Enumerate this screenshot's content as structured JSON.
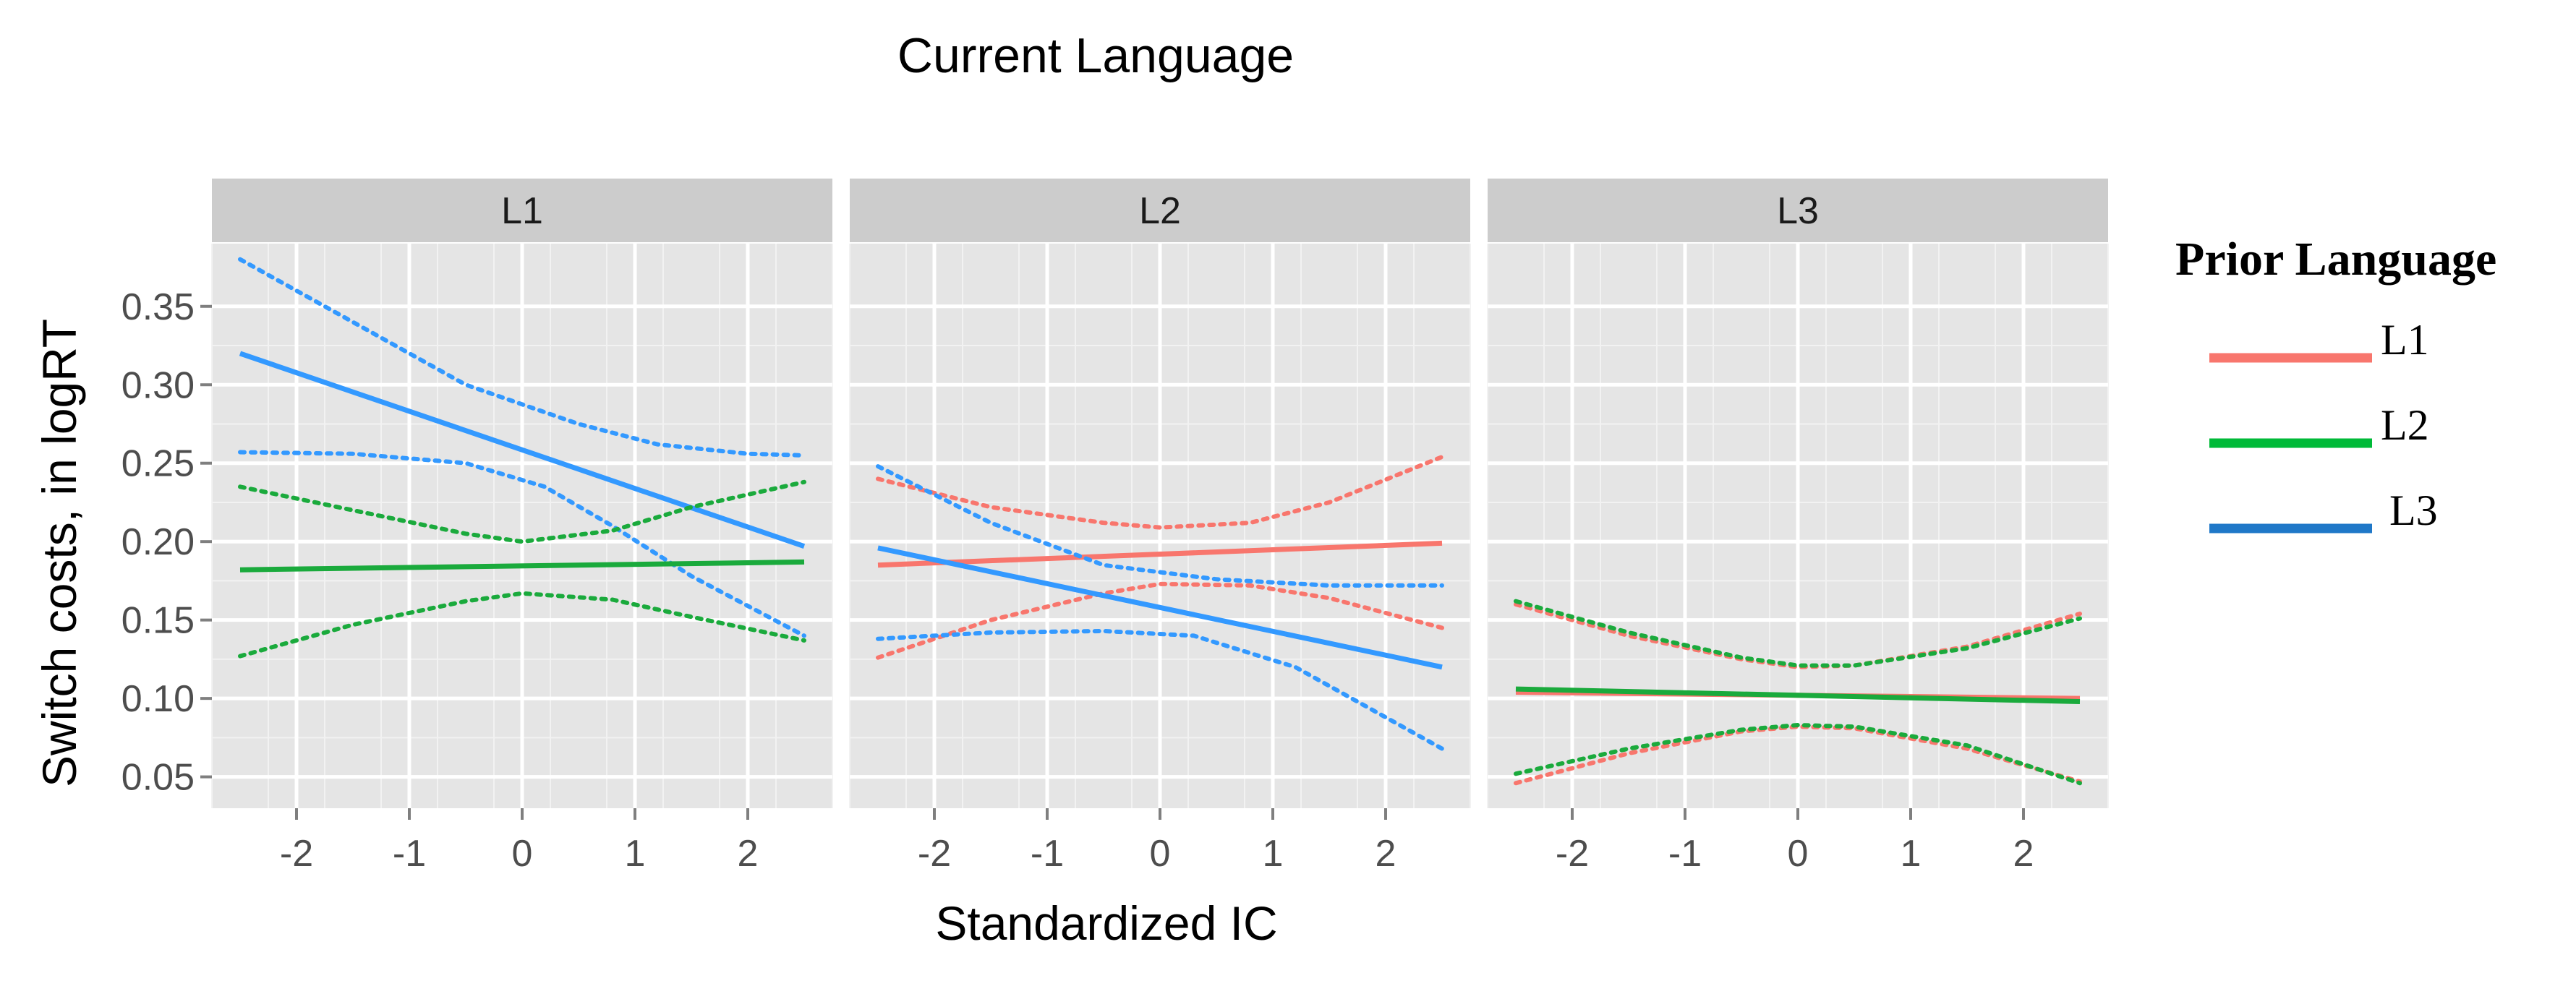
{
  "chart_data": {
    "type": "line",
    "title": "Current Language",
    "xlabel": "Standardized IC",
    "ylabel": "Switch costs, in logRT",
    "xlim": [
      -2.75,
      2.75
    ],
    "ylim": [
      0.03,
      0.39
    ],
    "x_ticks": [
      -2,
      -1,
      0,
      1,
      2
    ],
    "y_ticks": [
      0.05,
      0.1,
      0.15,
      0.2,
      0.25,
      0.3,
      0.35
    ],
    "y_tick_labels": [
      "0.05",
      "0.10",
      "0.15",
      "0.20",
      "0.25",
      "0.30",
      "0.35"
    ],
    "grid": true,
    "panel_background": "#e5e5e5",
    "strip_background": "#cccccc",
    "legend": {
      "title": "Prior Language",
      "position": "right",
      "entries": [
        {
          "label": "L1",
          "color": "#f8766d"
        },
        {
          "label": "L2",
          "color": "#00ba38"
        },
        {
          "label": "L3",
          "color": "#1f78c8"
        }
      ]
    },
    "panels": [
      {
        "label": "L1",
        "series": [
          {
            "color": "#3399ff",
            "fit": [
              [
                -2.5,
                0.32
              ],
              [
                2.5,
                0.197
              ]
            ],
            "upper": [
              [
                -2.5,
                0.38
              ],
              [
                -1.5,
                0.34
              ],
              [
                -0.5,
                0.3
              ],
              [
                0.5,
                0.275
              ],
              [
                1.2,
                0.262
              ],
              [
                2.0,
                0.256
              ],
              [
                2.5,
                0.255
              ]
            ],
            "lower": [
              [
                -2.5,
                0.257
              ],
              [
                -1.5,
                0.256
              ],
              [
                -0.5,
                0.25
              ],
              [
                0.2,
                0.235
              ],
              [
                0.8,
                0.21
              ],
              [
                1.5,
                0.178
              ],
              [
                2.5,
                0.14
              ]
            ]
          },
          {
            "color": "#1aaa3c",
            "fit": [
              [
                -2.5,
                0.182
              ],
              [
                2.5,
                0.187
              ]
            ],
            "upper": [
              [
                -2.5,
                0.235
              ],
              [
                -1.5,
                0.22
              ],
              [
                -0.5,
                0.205
              ],
              [
                0.0,
                0.2
              ],
              [
                0.8,
                0.207
              ],
              [
                1.5,
                0.222
              ],
              [
                2.5,
                0.238
              ]
            ],
            "lower": [
              [
                -2.5,
                0.127
              ],
              [
                -1.5,
                0.147
              ],
              [
                -0.5,
                0.162
              ],
              [
                0.0,
                0.167
              ],
              [
                0.8,
                0.163
              ],
              [
                1.5,
                0.152
              ],
              [
                2.5,
                0.137
              ]
            ]
          }
        ]
      },
      {
        "label": "L2",
        "series": [
          {
            "color": "#f8766d",
            "fit": [
              [
                -2.5,
                0.185
              ],
              [
                2.5,
                0.199
              ]
            ],
            "upper": [
              [
                -2.5,
                0.24
              ],
              [
                -1.5,
                0.222
              ],
              [
                -0.5,
                0.212
              ],
              [
                0.0,
                0.209
              ],
              [
                0.8,
                0.212
              ],
              [
                1.5,
                0.225
              ],
              [
                2.5,
                0.254
              ]
            ],
            "lower": [
              [
                -2.5,
                0.126
              ],
              [
                -1.5,
                0.15
              ],
              [
                -0.5,
                0.167
              ],
              [
                0.0,
                0.173
              ],
              [
                0.8,
                0.172
              ],
              [
                1.5,
                0.164
              ],
              [
                2.5,
                0.145
              ]
            ]
          },
          {
            "color": "#3399ff",
            "fit": [
              [
                -2.5,
                0.196
              ],
              [
                2.5,
                0.12
              ]
            ],
            "upper": [
              [
                -2.5,
                0.248
              ],
              [
                -1.5,
                0.212
              ],
              [
                -0.5,
                0.185
              ],
              [
                0.5,
                0.176
              ],
              [
                1.5,
                0.172
              ],
              [
                2.5,
                0.172
              ]
            ],
            "lower": [
              [
                -2.5,
                0.138
              ],
              [
                -1.5,
                0.142
              ],
              [
                -0.5,
                0.143
              ],
              [
                0.3,
                0.14
              ],
              [
                1.2,
                0.12
              ],
              [
                2.5,
                0.068
              ]
            ]
          }
        ]
      },
      {
        "label": "L3",
        "series": [
          {
            "color": "#f8766d",
            "fit": [
              [
                -2.5,
                0.104
              ],
              [
                2.5,
                0.1
              ]
            ],
            "upper": [
              [
                -2.5,
                0.16
              ],
              [
                -1.5,
                0.14
              ],
              [
                -0.5,
                0.125
              ],
              [
                0.0,
                0.12
              ],
              [
                0.5,
                0.121
              ],
              [
                1.5,
                0.133
              ],
              [
                2.5,
                0.154
              ]
            ],
            "lower": [
              [
                -2.5,
                0.046
              ],
              [
                -1.5,
                0.065
              ],
              [
                -0.5,
                0.079
              ],
              [
                0.0,
                0.082
              ],
              [
                0.5,
                0.081
              ],
              [
                1.5,
                0.068
              ],
              [
                2.5,
                0.047
              ]
            ]
          },
          {
            "color": "#1aaa3c",
            "fit": [
              [
                -2.5,
                0.106
              ],
              [
                2.5,
                0.098
              ]
            ],
            "upper": [
              [
                -2.5,
                0.162
              ],
              [
                -1.5,
                0.142
              ],
              [
                -0.5,
                0.126
              ],
              [
                0.0,
                0.121
              ],
              [
                0.5,
                0.121
              ],
              [
                1.5,
                0.132
              ],
              [
                2.5,
                0.151
              ]
            ],
            "lower": [
              [
                -2.5,
                0.052
              ],
              [
                -1.5,
                0.068
              ],
              [
                -0.5,
                0.08
              ],
              [
                0.0,
                0.083
              ],
              [
                0.5,
                0.082
              ],
              [
                1.5,
                0.07
              ],
              [
                2.5,
                0.046
              ]
            ]
          }
        ]
      }
    ]
  }
}
